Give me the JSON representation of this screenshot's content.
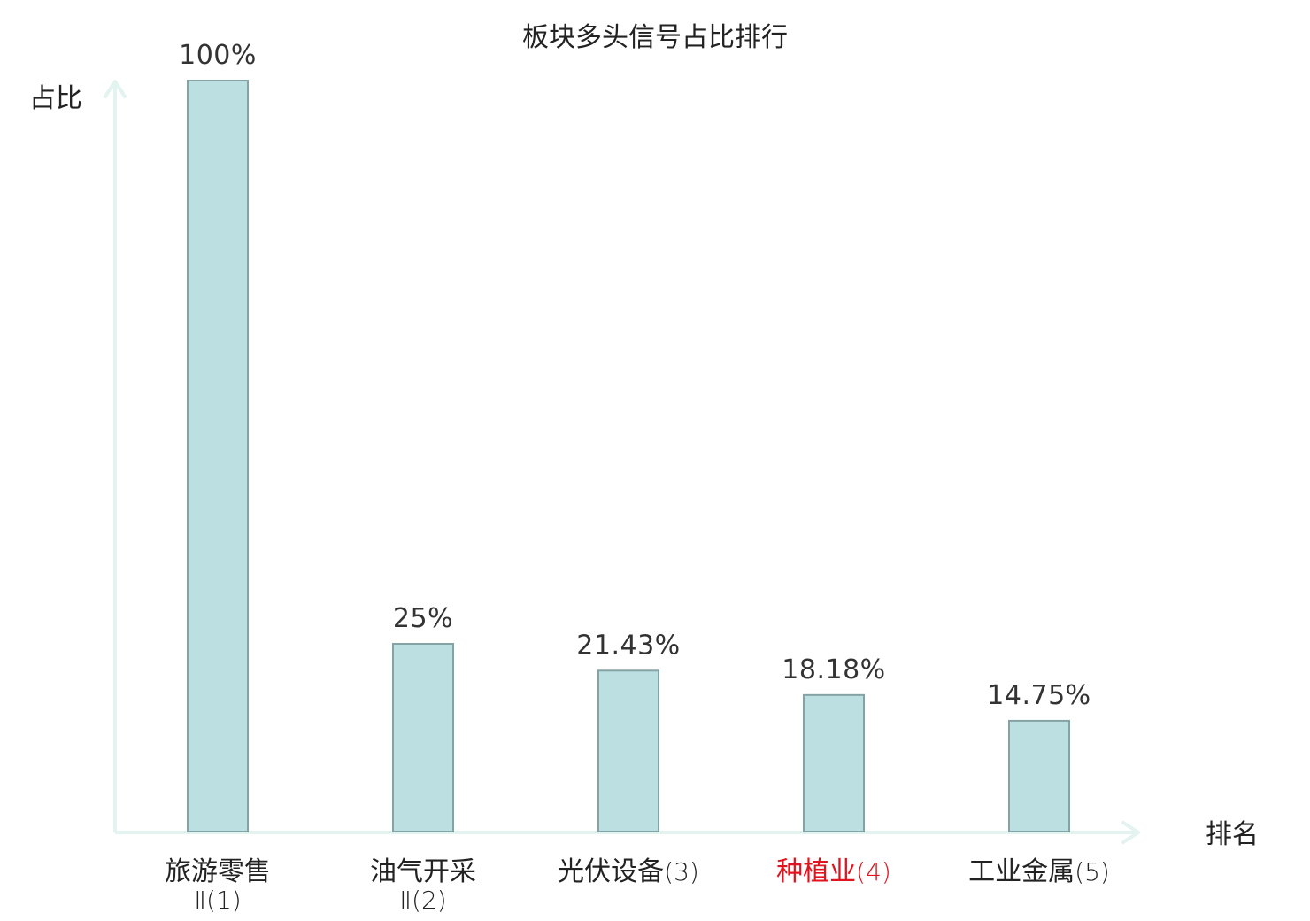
{
  "chart_data": {
    "type": "bar",
    "title": "板块多头信号占比排行",
    "ylabel": "占比",
    "xlabel": "排名",
    "ylim": [
      0,
      100
    ],
    "grid": false,
    "categories": [
      {
        "name": "旅游零售",
        "suffix": "Ⅱ",
        "rank": "(1)",
        "highlight": false
      },
      {
        "name": "油气开采",
        "suffix": "Ⅱ",
        "rank": "(2)",
        "highlight": false
      },
      {
        "name": "光伏设备",
        "suffix": "",
        "rank": "(3)",
        "highlight": false
      },
      {
        "name": "种植业",
        "suffix": "",
        "rank": "(4)",
        "highlight": true
      },
      {
        "name": "工业金属",
        "suffix": "",
        "rank": "(5)",
        "highlight": false
      }
    ],
    "values": [
      100,
      25,
      21.43,
      18.18,
      14.75
    ],
    "value_labels": [
      "100%",
      "25%",
      "21.43%",
      "18.18%",
      "14.75%"
    ]
  },
  "colors": {
    "bar_fill": "#bce0e2",
    "bar_stroke": "#84a3a4",
    "axis": "#e2f3f0",
    "text": "#222222",
    "value_text": "#333333",
    "highlight": "#e0141e"
  }
}
